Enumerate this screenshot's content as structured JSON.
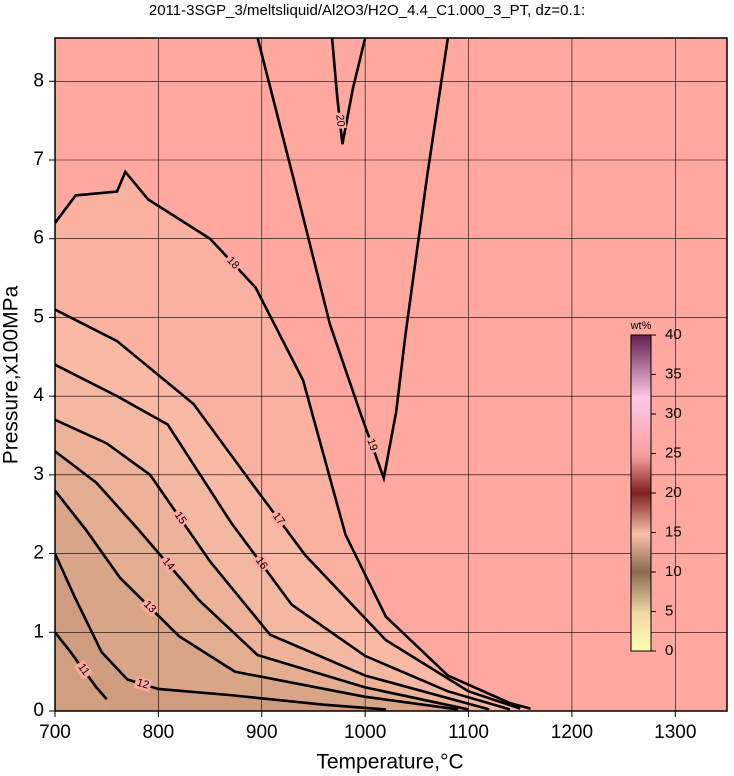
{
  "chart_data": {
    "type": "contour",
    "title": "2011-3SGP_3/meltsliquid/Al2O3/H2O_4.4_C1.000_3_PT, dz=0.1:",
    "x_label": "Temperature,°C",
    "y_label": "Pressure,x100MPa",
    "xlim": [
      700,
      1350
    ],
    "ylim": [
      0,
      8.55
    ],
    "xticks": [
      700,
      800,
      900,
      1000,
      1100,
      1200,
      1300
    ],
    "yticks": [
      0,
      1,
      2,
      3,
      4,
      5,
      6,
      7,
      8
    ],
    "grid": true,
    "background_color": "#ffa8a0",
    "contours": [
      {
        "level": 18,
        "x": [
          700,
          720,
          760,
          768,
          790,
          850,
          894,
          940,
          981,
          1020,
          1080,
          1140,
          1160
        ],
        "y": [
          6.2,
          6.55,
          6.6,
          6.85,
          6.5,
          6.0,
          5.38,
          4.2,
          2.24,
          1.2,
          0.45,
          0.1,
          0.03
        ]
      },
      {
        "level": 17,
        "x": [
          700,
          760,
          834,
          890,
          942,
          1020,
          1100,
          1150
        ],
        "y": [
          5.1,
          4.7,
          3.9,
          2.9,
          1.98,
          0.9,
          0.25,
          0.03
        ]
      },
      {
        "level": 16,
        "x": [
          700,
          760,
          809,
          870,
          929,
          1000,
          1080,
          1140
        ],
        "y": [
          4.4,
          4.0,
          3.64,
          2.4,
          1.35,
          0.7,
          0.25,
          0.02
        ]
      },
      {
        "level": 15,
        "x": [
          700,
          750,
          792,
          850,
          908,
          1000,
          1120
        ],
        "y": [
          3.7,
          3.4,
          3.0,
          1.9,
          0.97,
          0.45,
          0.02
        ]
      },
      {
        "level": 14,
        "x": [
          700,
          740,
          779,
          840,
          896,
          1000,
          1100
        ],
        "y": [
          3.3,
          2.9,
          2.33,
          1.4,
          0.71,
          0.3,
          0.02
        ]
      },
      {
        "level": 13,
        "x": [
          700,
          730,
          763,
          820,
          874,
          1000,
          1090
        ],
        "y": [
          2.8,
          2.3,
          1.69,
          0.95,
          0.5,
          0.18,
          0.02
        ]
      },
      {
        "level": 12,
        "x": [
          700,
          719,
          745,
          770,
          800,
          871,
          960,
          1020
        ],
        "y": [
          2.0,
          1.45,
          0.75,
          0.4,
          0.28,
          0.2,
          0.08,
          0.02
        ]
      },
      {
        "level": 11,
        "x": [
          700,
          715,
          740,
          750
        ],
        "y": [
          1.0,
          0.75,
          0.3,
          0.15
        ]
      },
      {
        "level": 19,
        "x": [
          896,
          930,
          966,
          995,
          1018,
          1030,
          1039,
          1060,
          1080
        ],
        "y": [
          8.55,
          6.8,
          4.91,
          3.8,
          2.96,
          3.8,
          4.78,
          6.8,
          8.55
        ]
      },
      {
        "level": 20,
        "x": [
          968,
          973,
          978,
          988,
          1000
        ],
        "y": [
          8.55,
          7.8,
          7.2,
          7.9,
          8.55
        ]
      }
    ],
    "colorbar": {
      "label": "wt%",
      "lim": [
        0,
        40
      ],
      "ticks": [
        0,
        5,
        10,
        15,
        20,
        25,
        30,
        35,
        40
      ]
    }
  }
}
